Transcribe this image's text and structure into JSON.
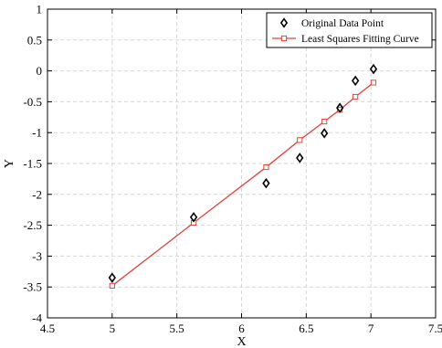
{
  "chart_data": {
    "type": "line",
    "xlabel": "X",
    "ylabel": "Y",
    "xlim": [
      4.5,
      7.5
    ],
    "ylim": [
      -4,
      1
    ],
    "x_ticks": [
      "4.5",
      "5",
      "5.5",
      "6",
      "6.5",
      "7",
      "7.5"
    ],
    "y_ticks": [
      "1",
      "0.5",
      "0",
      "-0.5",
      "-1",
      "-1.5",
      "-2",
      "-2.5",
      "-3",
      "-3.5",
      "-4"
    ],
    "grid": true,
    "legend_position": "top-right",
    "series": [
      {
        "name": "Original Data Point",
        "style": "scatter",
        "marker": "diamond",
        "color": "#000000",
        "points": [
          {
            "x": 5.0,
            "y": -3.35
          },
          {
            "x": 5.63,
            "y": -2.37
          },
          {
            "x": 6.19,
            "y": -1.82
          },
          {
            "x": 6.45,
            "y": -1.41
          },
          {
            "x": 6.64,
            "y": -1.01
          },
          {
            "x": 6.76,
            "y": -0.6
          },
          {
            "x": 6.88,
            "y": -0.16
          },
          {
            "x": 7.02,
            "y": 0.03
          }
        ]
      },
      {
        "name": "Least Squares Fitting Curve",
        "style": "line",
        "marker": "square",
        "color": "#e0443e",
        "points": [
          {
            "x": 5.0,
            "y": -3.48
          },
          {
            "x": 5.63,
            "y": -2.46
          },
          {
            "x": 6.19,
            "y": -1.56
          },
          {
            "x": 6.45,
            "y": -1.12
          },
          {
            "x": 6.64,
            "y": -0.82
          },
          {
            "x": 6.76,
            "y": -0.63
          },
          {
            "x": 6.88,
            "y": -0.42
          },
          {
            "x": 7.02,
            "y": -0.19
          }
        ]
      }
    ]
  }
}
